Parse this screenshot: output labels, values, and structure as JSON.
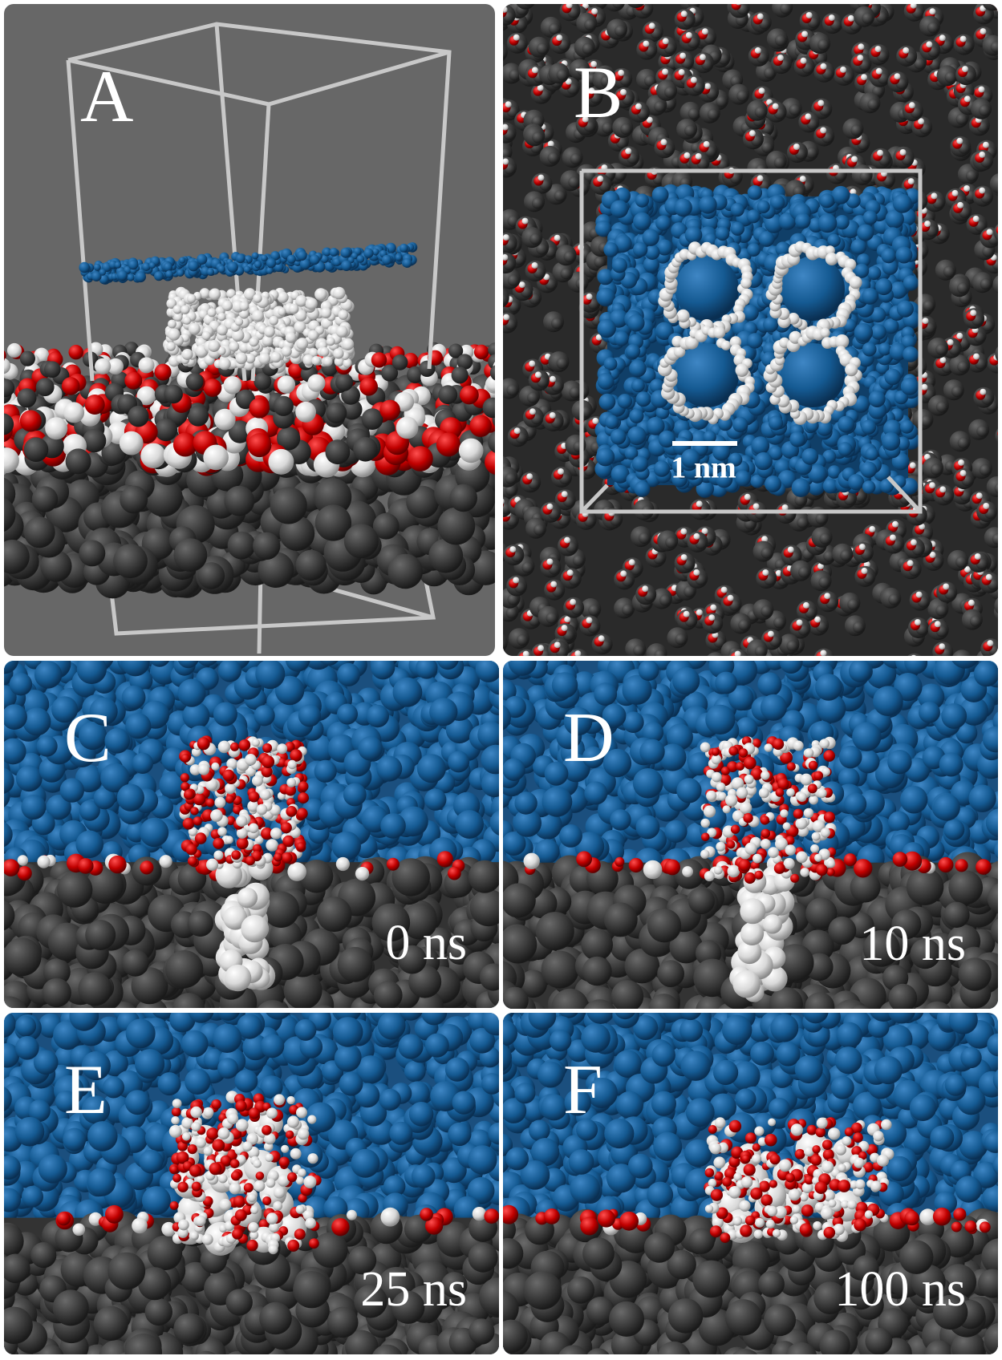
{
  "panels": [
    {
      "label": "A"
    },
    {
      "label": "B",
      "scale_bar": "1 nm"
    },
    {
      "label": "C",
      "time": "0 ns"
    },
    {
      "label": "D",
      "time": "10 ns"
    },
    {
      "label": "E",
      "time": "25 ns"
    },
    {
      "label": "F",
      "time": "100 ns"
    }
  ]
}
